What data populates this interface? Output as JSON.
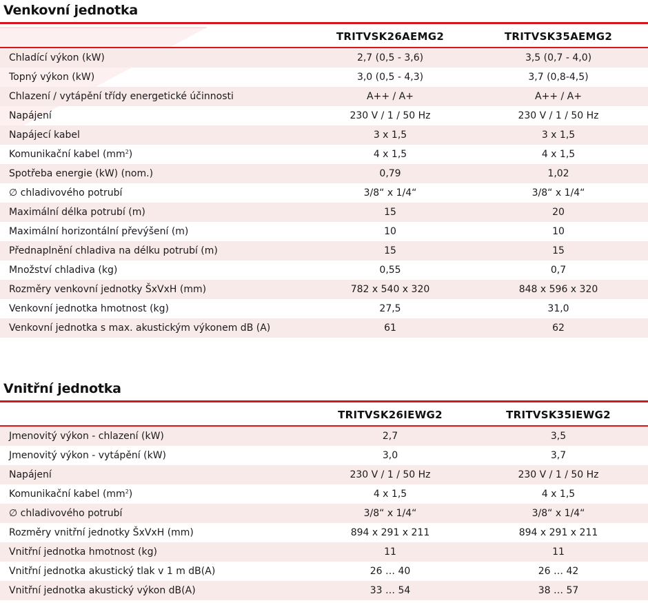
{
  "outdoor": {
    "title": "Venkovní jednotka",
    "models": [
      "TRITVSK26AEMG2",
      "TRITVSK35AEMG2"
    ],
    "rows": [
      {
        "label": "Chladící výkon (kW)",
        "v1": "2,7 (0,5 - 3,6)",
        "v2": "3,5 (0,7 - 4,0)"
      },
      {
        "label": "Topný výkon (kW)",
        "v1": "3,0 (0,5 - 4,3)",
        "v2": "3,7 (0,8-4,5)"
      },
      {
        "label": "Chlazení / vytápění třídy energetické účinnosti",
        "v1": "A++ / A+",
        "v2": "A++ / A+"
      },
      {
        "label": "Napájení",
        "v1": "230 V / 1 / 50 Hz",
        "v2": "230 V / 1 / 50 Hz"
      },
      {
        "label": "Napájecí kabel",
        "v1": "3 x 1,5",
        "v2": "3 x 1,5"
      },
      {
        "label": "Komunikační kabel (mm",
        "sup": "2",
        "label_end": ")",
        "v1": "4 x 1,5",
        "v2": "4 x 1,5"
      },
      {
        "label": "Spotřeba energie (kW) (nom.)",
        "v1": "0,79",
        "v2": "1,02"
      },
      {
        "label": "∅ chladivového potrubí",
        "v1": "3/8“ x 1/4“",
        "v2": "3/8“ x 1/4“"
      },
      {
        "label": "Maximální délka potrubí (m)",
        "v1": "15",
        "v2": "20"
      },
      {
        "label": "Maximální horizontální převýšení (m)",
        "v1": "10",
        "v2": "10"
      },
      {
        "label": "Přednaplnění chladiva na délku potrubí (m)",
        "v1": "15",
        "v2": "15"
      },
      {
        "label": "Množství chladiva (kg)",
        "v1": "0,55",
        "v2": "0,7"
      },
      {
        "label": "Rozměry venkovní jednotky ŠxVxH (mm)",
        "v1": "782 x 540 x 320",
        "v2": "848 x 596 x 320"
      },
      {
        "label": "Venkovní jednotka hmotnost (kg)",
        "v1": "27,5",
        "v2": "31,0"
      },
      {
        "label": "Venkovní jednotka s max. akustickým výkonem dB (A)",
        "v1": "61",
        "v2": "62"
      }
    ]
  },
  "indoor": {
    "title": "Vnitřní jednotka",
    "models": [
      "TRITVSK26IEWG2",
      "TRITVSK35IEWG2"
    ],
    "rows": [
      {
        "label": "Jmenovitý výkon - chlazení (kW)",
        "v1": "2,7",
        "v2": "3,5"
      },
      {
        "label": "Jmenovitý výkon - vytápění (kW)",
        "v1": "3,0",
        "v2": "3,7"
      },
      {
        "label": "Napájení",
        "v1": "230 V / 1 / 50 Hz",
        "v2": "230 V / 1 / 50 Hz"
      },
      {
        "label": "Komunikační kabel (mm",
        "sup": "2",
        "label_end": ")",
        "v1": "4 x 1,5",
        "v2": "4 x 1,5"
      },
      {
        "label": "∅ chladivového potrubí",
        "v1": "3/8“ x 1/4“",
        "v2": "3/8“ x 1/4“"
      },
      {
        "label": "Rozměry vnitřní jednotky ŠxVxH (mm)",
        "v1": "894 x 291 x 211",
        "v2": "894 x 291 x 211"
      },
      {
        "label": "Vnitřní jednotka hmotnost (kg)",
        "v1": "11",
        "v2": "11"
      },
      {
        "label": "Vnitřní jednotka akustický tlak v 1 m dB(A)",
        "v1": "26 … 40",
        "v2": "26 … 42"
      },
      {
        "label": "Vnitřní jednotka akustický výkon dB(A)",
        "v1": "33 … 54",
        "v2": "38 … 57"
      }
    ]
  },
  "colors": {
    "accent": "#d4151f",
    "row_shade": "#f9eaea"
  }
}
